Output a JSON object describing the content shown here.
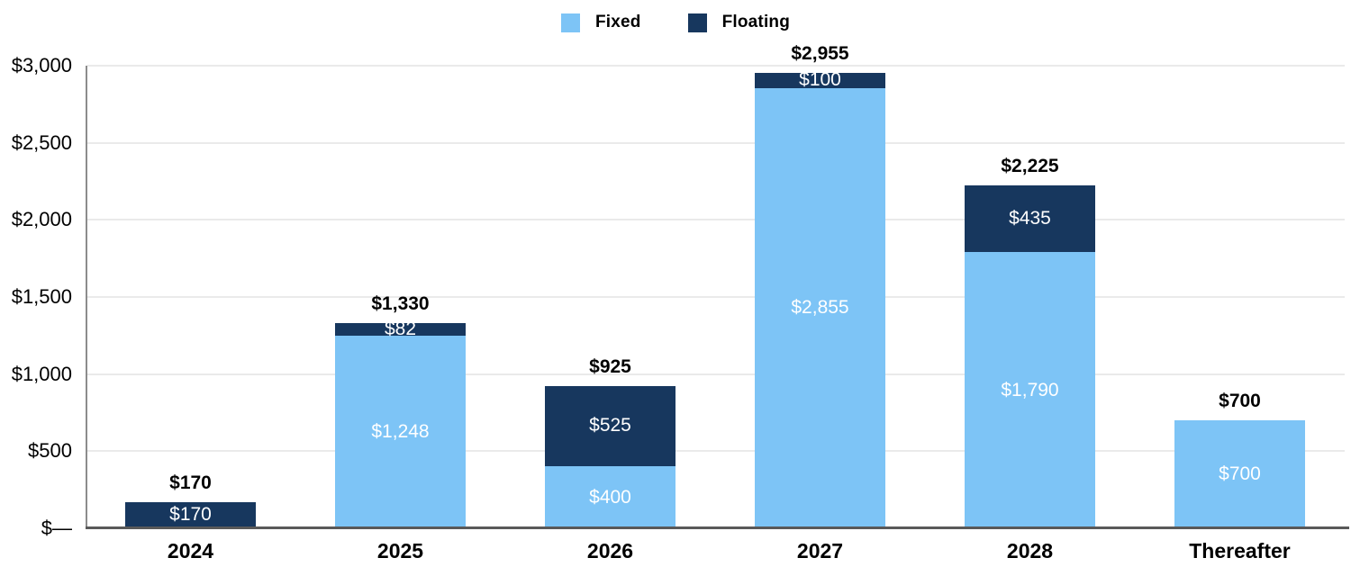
{
  "chart_data": {
    "type": "bar",
    "stacked": true,
    "title": "",
    "categories": [
      "2024",
      "2025",
      "2026",
      "2027",
      "2028",
      "Thereafter"
    ],
    "series": [
      {
        "name": "Fixed",
        "color": "#7DC4F6",
        "values": [
          0,
          1248,
          400,
          2855,
          1790,
          700
        ],
        "labels": [
          "",
          "$1,248",
          "$400",
          "$2,855",
          "$1,790",
          "$700"
        ]
      },
      {
        "name": "Floating",
        "color": "#17375E",
        "values": [
          170,
          82,
          525,
          100,
          435,
          0
        ],
        "labels": [
          "$170",
          "$82",
          "$525",
          "$100",
          "$435",
          ""
        ]
      }
    ],
    "totals": [
      170,
      1330,
      925,
      2955,
      2225,
      700
    ],
    "total_labels": [
      "$170",
      "$1,330",
      "$925",
      "$2,955",
      "$2,225",
      "$700"
    ],
    "y_axis": {
      "min": 0,
      "max": 3000,
      "ticks": [
        {
          "value": 0,
          "label": "$—"
        },
        {
          "value": 500,
          "label": "$500"
        },
        {
          "value": 1000,
          "label": "$1,000"
        },
        {
          "value": 1500,
          "label": "$1,500"
        },
        {
          "value": 2000,
          "label": "$2,000"
        },
        {
          "value": 2500,
          "label": "$2,500"
        },
        {
          "value": 3000,
          "label": "$3,000"
        }
      ]
    },
    "legend": {
      "position": "top",
      "items": [
        {
          "label": "Fixed",
          "color": "#7DC4F6"
        },
        {
          "label": "Floating",
          "color": "#17375E"
        }
      ]
    },
    "grid": true,
    "colors": {
      "gridline": "#EAEAEA",
      "axis_line": "#8C8C8C",
      "baseline": "#595959",
      "segment_label_text": "#FFFFFF",
      "total_label_text": "#000000"
    }
  }
}
